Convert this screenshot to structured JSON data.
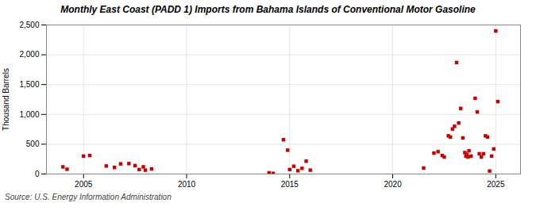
{
  "chart_data": {
    "type": "scatter",
    "title": "Monthly East Coast (PADD 1) Imports from Bahama Islands of Conventional Motor Gasoline",
    "ylabel": "Thousand Barrels",
    "source": "Source: U.S. Energy Information Administration",
    "color": "#cc0000",
    "marker": "square",
    "grid": true,
    "xlim": [
      2003.2,
      2026.2
    ],
    "xticks": [
      2005,
      2010,
      2015,
      2020,
      2025
    ],
    "ylim": [
      0,
      2500
    ],
    "yticks": [
      0,
      500,
      {
        "value": 1000,
        "label": "1,000"
      },
      {
        "value": 1500,
        "label": "1,500"
      },
      {
        "value": 2000,
        "label": "2,000"
      },
      {
        "value": 2500,
        "label": "2,500"
      }
    ],
    "x": [
      2004.0,
      2004.2,
      2005.0,
      2005.3,
      2006.1,
      2006.5,
      2006.8,
      2007.2,
      2007.5,
      2007.7,
      2007.9,
      2008.0,
      2008.3,
      2014.0,
      2014.2,
      2014.7,
      2014.9,
      2015.0,
      2015.2,
      2015.4,
      2015.6,
      2015.8,
      2016.0,
      2021.5,
      2022.0,
      2022.2,
      2022.4,
      2022.5,
      2022.7,
      2022.8,
      2022.9,
      2023.0,
      2023.1,
      2023.2,
      2023.3,
      2023.4,
      2023.5,
      2023.55,
      2023.6,
      2023.65,
      2023.7,
      2023.8,
      2024.0,
      2024.1,
      2024.2,
      2024.3,
      2024.4,
      2024.5,
      2024.6,
      2024.7,
      2024.8,
      2024.9,
      2025.0,
      2025.1
    ],
    "values": [
      120,
      80,
      300,
      310,
      135,
      110,
      170,
      175,
      140,
      75,
      120,
      65,
      85,
      20,
      10,
      575,
      400,
      75,
      130,
      55,
      95,
      215,
      65,
      100,
      350,
      375,
      310,
      285,
      640,
      620,
      755,
      800,
      1870,
      855,
      1100,
      605,
      360,
      300,
      330,
      285,
      390,
      300,
      1270,
      1040,
      340,
      285,
      340,
      640,
      620,
      50,
      300,
      420,
      2400,
      1215
    ]
  }
}
